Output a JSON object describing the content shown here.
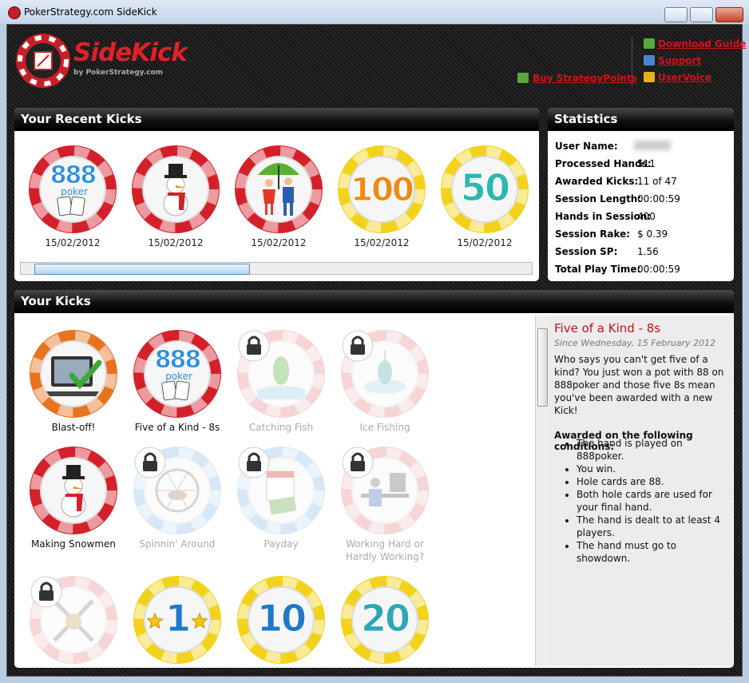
{
  "window": {
    "title": "PokerStrategy.com SideKick"
  },
  "header": {
    "logo": "SideKick",
    "tagline": "by PokerStrategy.com",
    "links": [
      "Buy StrategyPoints",
      "Download Guide",
      "Support",
      "UserVoice"
    ]
  },
  "recent_kicks": {
    "title": "Your Recent Kicks",
    "items": [
      {
        "badge": [
          "888",
          "poker"
        ],
        "badge_color": "#2b8fe0",
        "date": "15/02/2012",
        "color": "#d4202a"
      },
      {
        "date": "15/02/2012",
        "color": "#d4202a"
      },
      {
        "date": "15/02/2012",
        "color": "#d4202a"
      },
      {
        "badge": [
          "100"
        ],
        "badge_color": "#f08a12",
        "date": "15/02/2012",
        "color": "#f2d21b"
      },
      {
        "badge": [
          "50"
        ],
        "badge_color": "#2fb6b0",
        "date": "15/02/2012",
        "color": "#f2d21b"
      }
    ]
  },
  "statistics": {
    "title": "Statistics",
    "rows": [
      [
        "User Name:"
      ],
      [
        "Processed Hands:",
        "511"
      ],
      [
        "Awarded Kicks:",
        "11 of 47"
      ],
      [
        "Session Length:",
        "00:00:59"
      ],
      [
        "Hands in Session:",
        "400"
      ],
      [
        "Session Rake:",
        "$ 0.39"
      ],
      [
        "Session SP:",
        "1.56"
      ],
      [
        "Total Play Time:",
        "00:00:59"
      ]
    ]
  },
  "kicks": {
    "title": "Your Kicks",
    "items": [
      {
        "name": "Blast-off!",
        "color": "#e8731f"
      },
      {
        "name": "Five of a Kind - 8s",
        "badge": [
          "888",
          "poker"
        ],
        "badge_color": "#2b8fe0",
        "color": "#d4202a"
      },
      {
        "name": "Catching Fish",
        "locked": true,
        "color": "#e58a8a"
      },
      {
        "name": "Ice Fishing",
        "locked": true,
        "color": "#e58a8a"
      },
      {
        "name": "Making Snowmen",
        "color": "#d4202a"
      },
      {
        "name": "Spinnin' Around",
        "locked": true,
        "color": "#8cc0ea"
      },
      {
        "name": "Payday",
        "locked": true,
        "color": "#8cc0ea"
      },
      {
        "name": "Working Hard or Hardly Working?",
        "locked": true,
        "color": "#e58a8a"
      },
      {
        "locked": true,
        "color": "#e58a8a"
      },
      {
        "badge": [
          "1"
        ],
        "badge_color": "#1f78c8",
        "color": "#f2d21b"
      },
      {
        "badge": [
          "10"
        ],
        "badge_color": "#1f78c8",
        "color": "#f2d21b"
      },
      {
        "badge": [
          "20"
        ],
        "badge_color": "#2fa6b8",
        "color": "#f2d21b"
      }
    ]
  },
  "detail": {
    "title": "Five of a Kind - 8s",
    "since": "Since Wednesday, 15 February 2012",
    "description": "Who says you can't get five of a kind? You just won a pot with 88 on 888poker and those five 8s mean you've been awarded with a new Kick!",
    "conditions_title": "Awarded on the following conditions:",
    "conditions": [
      "The hand is played on 888poker.",
      "You win.",
      "Hole cards are 88.",
      "Both hole cards are used for your final hand.",
      "The hand is dealt to at least 4 players.",
      "The hand must go to showdown."
    ]
  }
}
